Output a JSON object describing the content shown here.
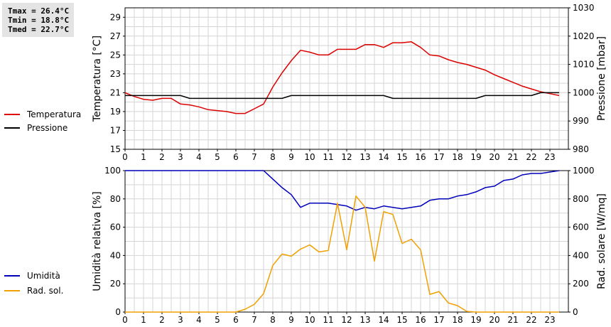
{
  "stats": {
    "tmax": "Tmax = 26.4°C",
    "tmin": "Tmin = 18.8°C",
    "tmed": "Tmed = 22.7°C"
  },
  "chart_data": [
    {
      "type": "line",
      "x_ticks": [
        "0",
        "1",
        "2",
        "3",
        "4",
        "5",
        "6",
        "7",
        "8",
        "9",
        "10",
        "11",
        "12",
        "13",
        "14",
        "15",
        "16",
        "17",
        "18",
        "19",
        "20",
        "21",
        "22",
        "23"
      ],
      "xlim": [
        0,
        24
      ],
      "ylabel_left": "Temperatura [°C]",
      "ylim_left": [
        15,
        30
      ],
      "yticks_left": [
        15,
        17,
        19,
        21,
        23,
        25,
        27,
        29
      ],
      "ylabel_right": "Pressione [mbar]",
      "ylim_right": [
        980,
        1030
      ],
      "yticks_right": [
        980,
        990,
        1000,
        1010,
        1020,
        1030
      ],
      "grid": true,
      "legend_placement": "left",
      "series": [
        {
          "name": "Temperatura",
          "axis": "left",
          "color": "#dd0000",
          "x": [
            0,
            0.5,
            1,
            1.5,
            2,
            2.5,
            3,
            3.5,
            4,
            4.5,
            5,
            5.5,
            6,
            6.5,
            7,
            7.5,
            8,
            8.5,
            9,
            9.5,
            10,
            10.5,
            11,
            11.5,
            12,
            12.5,
            13,
            13.5,
            14,
            14.5,
            15,
            15.5,
            16,
            16.5,
            17,
            17.5,
            18,
            18.5,
            19,
            19.5,
            20,
            20.5,
            21,
            21.5,
            22,
            22.5,
            23,
            23.5
          ],
          "values": [
            21.0,
            20.6,
            20.3,
            20.2,
            20.4,
            20.4,
            19.8,
            19.7,
            19.5,
            19.2,
            19.1,
            19.0,
            18.8,
            18.8,
            19.3,
            19.8,
            21.6,
            23.1,
            24.4,
            25.5,
            25.3,
            25.0,
            25.0,
            25.6,
            25.6,
            25.6,
            26.1,
            26.1,
            25.8,
            26.3,
            26.3,
            26.4,
            25.8,
            25.0,
            24.9,
            24.5,
            24.2,
            24.0,
            23.7,
            23.4,
            22.9,
            22.5,
            22.1,
            21.7,
            21.4,
            21.1,
            20.9,
            20.7
          ]
        },
        {
          "name": "Pressione",
          "axis": "right",
          "color": "#000000",
          "x": [
            0,
            0.5,
            1,
            1.5,
            2,
            2.5,
            3,
            3.5,
            4,
            4.5,
            5,
            5.5,
            6,
            6.5,
            7,
            7.5,
            8,
            8.5,
            9,
            9.5,
            10,
            10.5,
            11,
            11.5,
            12,
            12.5,
            13,
            13.5,
            14,
            14.5,
            15,
            15.5,
            16,
            16.5,
            17,
            17.5,
            18,
            18.5,
            19,
            19.5,
            20,
            20.5,
            21,
            21.5,
            22,
            22.5,
            23,
            23.5
          ],
          "values": [
            999,
            999,
            999,
            999,
            999,
            999,
            999,
            998,
            998,
            998,
            998,
            998,
            998,
            998,
            998,
            998,
            998,
            998,
            999,
            999,
            999,
            999,
            999,
            999,
            999,
            999,
            999,
            999,
            999,
            998,
            998,
            998,
            998,
            998,
            998,
            998,
            998,
            998,
            998,
            999,
            999,
            999,
            999,
            999,
            999,
            1000,
            1000,
            1000
          ]
        }
      ]
    },
    {
      "type": "line",
      "x_ticks": [
        "0",
        "1",
        "2",
        "3",
        "4",
        "5",
        "6",
        "7",
        "8",
        "9",
        "10",
        "11",
        "12",
        "13",
        "14",
        "15",
        "16",
        "17",
        "18",
        "19",
        "20",
        "21",
        "22",
        "23"
      ],
      "xlim": [
        0,
        24
      ],
      "ylabel_left": "Umidità relativa [%]",
      "ylim_left": [
        0,
        100
      ],
      "yticks_left": [
        0,
        20,
        40,
        60,
        80,
        100
      ],
      "ylabel_right": "Rad. solare [W/mq]",
      "ylim_right": [
        0,
        1000
      ],
      "yticks_right": [
        0,
        200,
        400,
        600,
        800,
        1000
      ],
      "grid": true,
      "legend_placement": "left",
      "series": [
        {
          "name": "Umidità",
          "axis": "left",
          "color": "#0000bb",
          "x": [
            0,
            0.5,
            1,
            1.5,
            2,
            2.5,
            3,
            3.5,
            4,
            4.5,
            5,
            5.5,
            6,
            6.5,
            7,
            7.5,
            8,
            8.5,
            9,
            9.5,
            10,
            10.5,
            11,
            11.5,
            12,
            12.5,
            13,
            13.5,
            14,
            14.5,
            15,
            15.5,
            16,
            16.5,
            17,
            17.5,
            18,
            18.5,
            19,
            19.5,
            20,
            20.5,
            21,
            21.5,
            22,
            22.5,
            23,
            23.5
          ],
          "values": [
            100,
            100,
            100,
            100,
            100,
            100,
            100,
            100,
            100,
            100,
            100,
            100,
            100,
            100,
            100,
            100,
            94,
            88,
            83,
            74,
            77,
            77,
            77,
            76,
            75,
            72,
            74,
            73,
            75,
            74,
            73,
            74,
            75,
            79,
            80,
            80,
            82,
            83,
            85,
            88,
            89,
            93,
            94,
            97,
            98,
            98,
            99,
            100
          ]
        },
        {
          "name": "Rad. sol.",
          "axis": "right",
          "color": "#f0a000",
          "x": [
            0,
            0.5,
            1,
            1.5,
            2,
            2.5,
            3,
            3.5,
            4,
            4.5,
            5,
            5.5,
            6,
            6.5,
            7,
            7.5,
            8,
            8.5,
            9,
            9.5,
            10,
            10.5,
            11,
            11.5,
            12,
            12.5,
            13,
            13.5,
            14,
            14.5,
            15,
            15.5,
            16,
            16.5,
            17,
            17.5,
            18,
            18.5,
            19,
            19.5,
            20,
            20.5,
            21,
            21.5,
            22,
            22.5,
            23,
            23.5
          ],
          "values": [
            0,
            0,
            0,
            0,
            0,
            0,
            0,
            0,
            0,
            0,
            0,
            0,
            0,
            20,
            55,
            130,
            330,
            410,
            395,
            445,
            475,
            425,
            435,
            770,
            440,
            820,
            740,
            360,
            710,
            690,
            485,
            515,
            440,
            125,
            145,
            65,
            45,
            5,
            0,
            0,
            0,
            0,
            0,
            0,
            0,
            0,
            0,
            0
          ]
        }
      ]
    }
  ]
}
